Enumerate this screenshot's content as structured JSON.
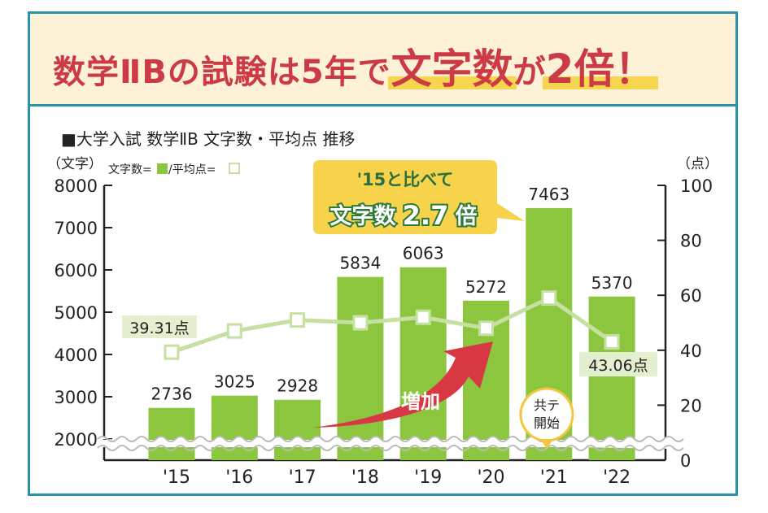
{
  "headline": {
    "part1": "数学ⅡBの試験は5年で",
    "part2": "文字数",
    "part3": "が",
    "part4": "2倍！"
  },
  "chart_data": {
    "type": "bar",
    "title": "■大学入試 数学ⅡB 文字数・平均点 推移",
    "categories": [
      "'15",
      "'16",
      "'17",
      "'18",
      "'19",
      "'20",
      "'21",
      "'22"
    ],
    "series": [
      {
        "name": "文字数",
        "type": "bar",
        "axis": "left",
        "values": [
          2736,
          3025,
          2928,
          5834,
          6063,
          5272,
          7463,
          5370
        ]
      },
      {
        "name": "平均点",
        "type": "line",
        "axis": "right",
        "values": [
          39.31,
          47,
          51,
          50,
          52,
          48,
          59,
          43.06
        ]
      }
    ],
    "left_axis": {
      "label": "（文字）",
      "ylim": [
        2000,
        8000
      ],
      "ticks": [
        2000,
        3000,
        4000,
        5000,
        6000,
        7000,
        8000
      ]
    },
    "right_axis": {
      "label": "（点）",
      "ylim": [
        0,
        100
      ],
      "ticks": [
        0,
        20,
        40,
        60,
        80,
        100
      ]
    },
    "legend_text": {
      "bars": "文字数=",
      "sep": "/平均点="
    },
    "point_labels": {
      "first": "39.31点",
      "last": "43.06点"
    },
    "annotations": {
      "callout_line1": "'15と比べて",
      "callout_line2_a": "文字数",
      "callout_line2_b": "2.7",
      "callout_line2_c": "倍",
      "increase": "増加",
      "badge_line1": "共テ",
      "badge_line2": "開始"
    },
    "colors": {
      "bar": "#8cc63f",
      "line": "#c5e0a1",
      "accent": "#d83844",
      "callout": "#f6d34b",
      "frame": "#2a93a8",
      "banner": "#fdf2d8"
    }
  }
}
